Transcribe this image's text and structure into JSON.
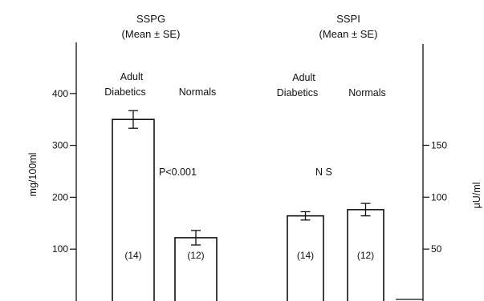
{
  "chart_data": [
    {
      "type": "bar",
      "title": "SSPG",
      "subtitle": "(Mean ± SE)",
      "ylabel": "mg/100ml",
      "ylim": [
        0,
        450
      ],
      "yticks": [
        100,
        200,
        300,
        400
      ],
      "categories": [
        "Adult Diabetics",
        "Normals"
      ],
      "category_lines": [
        [
          "Adult",
          "Diabetics"
        ],
        [
          "Normals"
        ]
      ],
      "values": [
        350,
        122
      ],
      "errors": [
        17,
        14
      ],
      "counts": [
        "(14)",
        "(12)"
      ],
      "annotation": "P<0.001",
      "grid": false
    },
    {
      "type": "bar",
      "title": "SSPI",
      "subtitle": "(Mean ± SE)",
      "ylabel": "μU/ml",
      "ylim": [
        0,
        225
      ],
      "yticks": [
        50,
        100,
        150
      ],
      "categories": [
        "Adult Diabetics",
        "Normals"
      ],
      "category_lines": [
        [
          "Adult",
          "Diabetics"
        ],
        [
          "Normals"
        ]
      ],
      "values": [
        82,
        88
      ],
      "errors": [
        4,
        6
      ],
      "counts": [
        "(14)",
        "(12)"
      ],
      "annotation": "N S",
      "grid": false
    }
  ]
}
